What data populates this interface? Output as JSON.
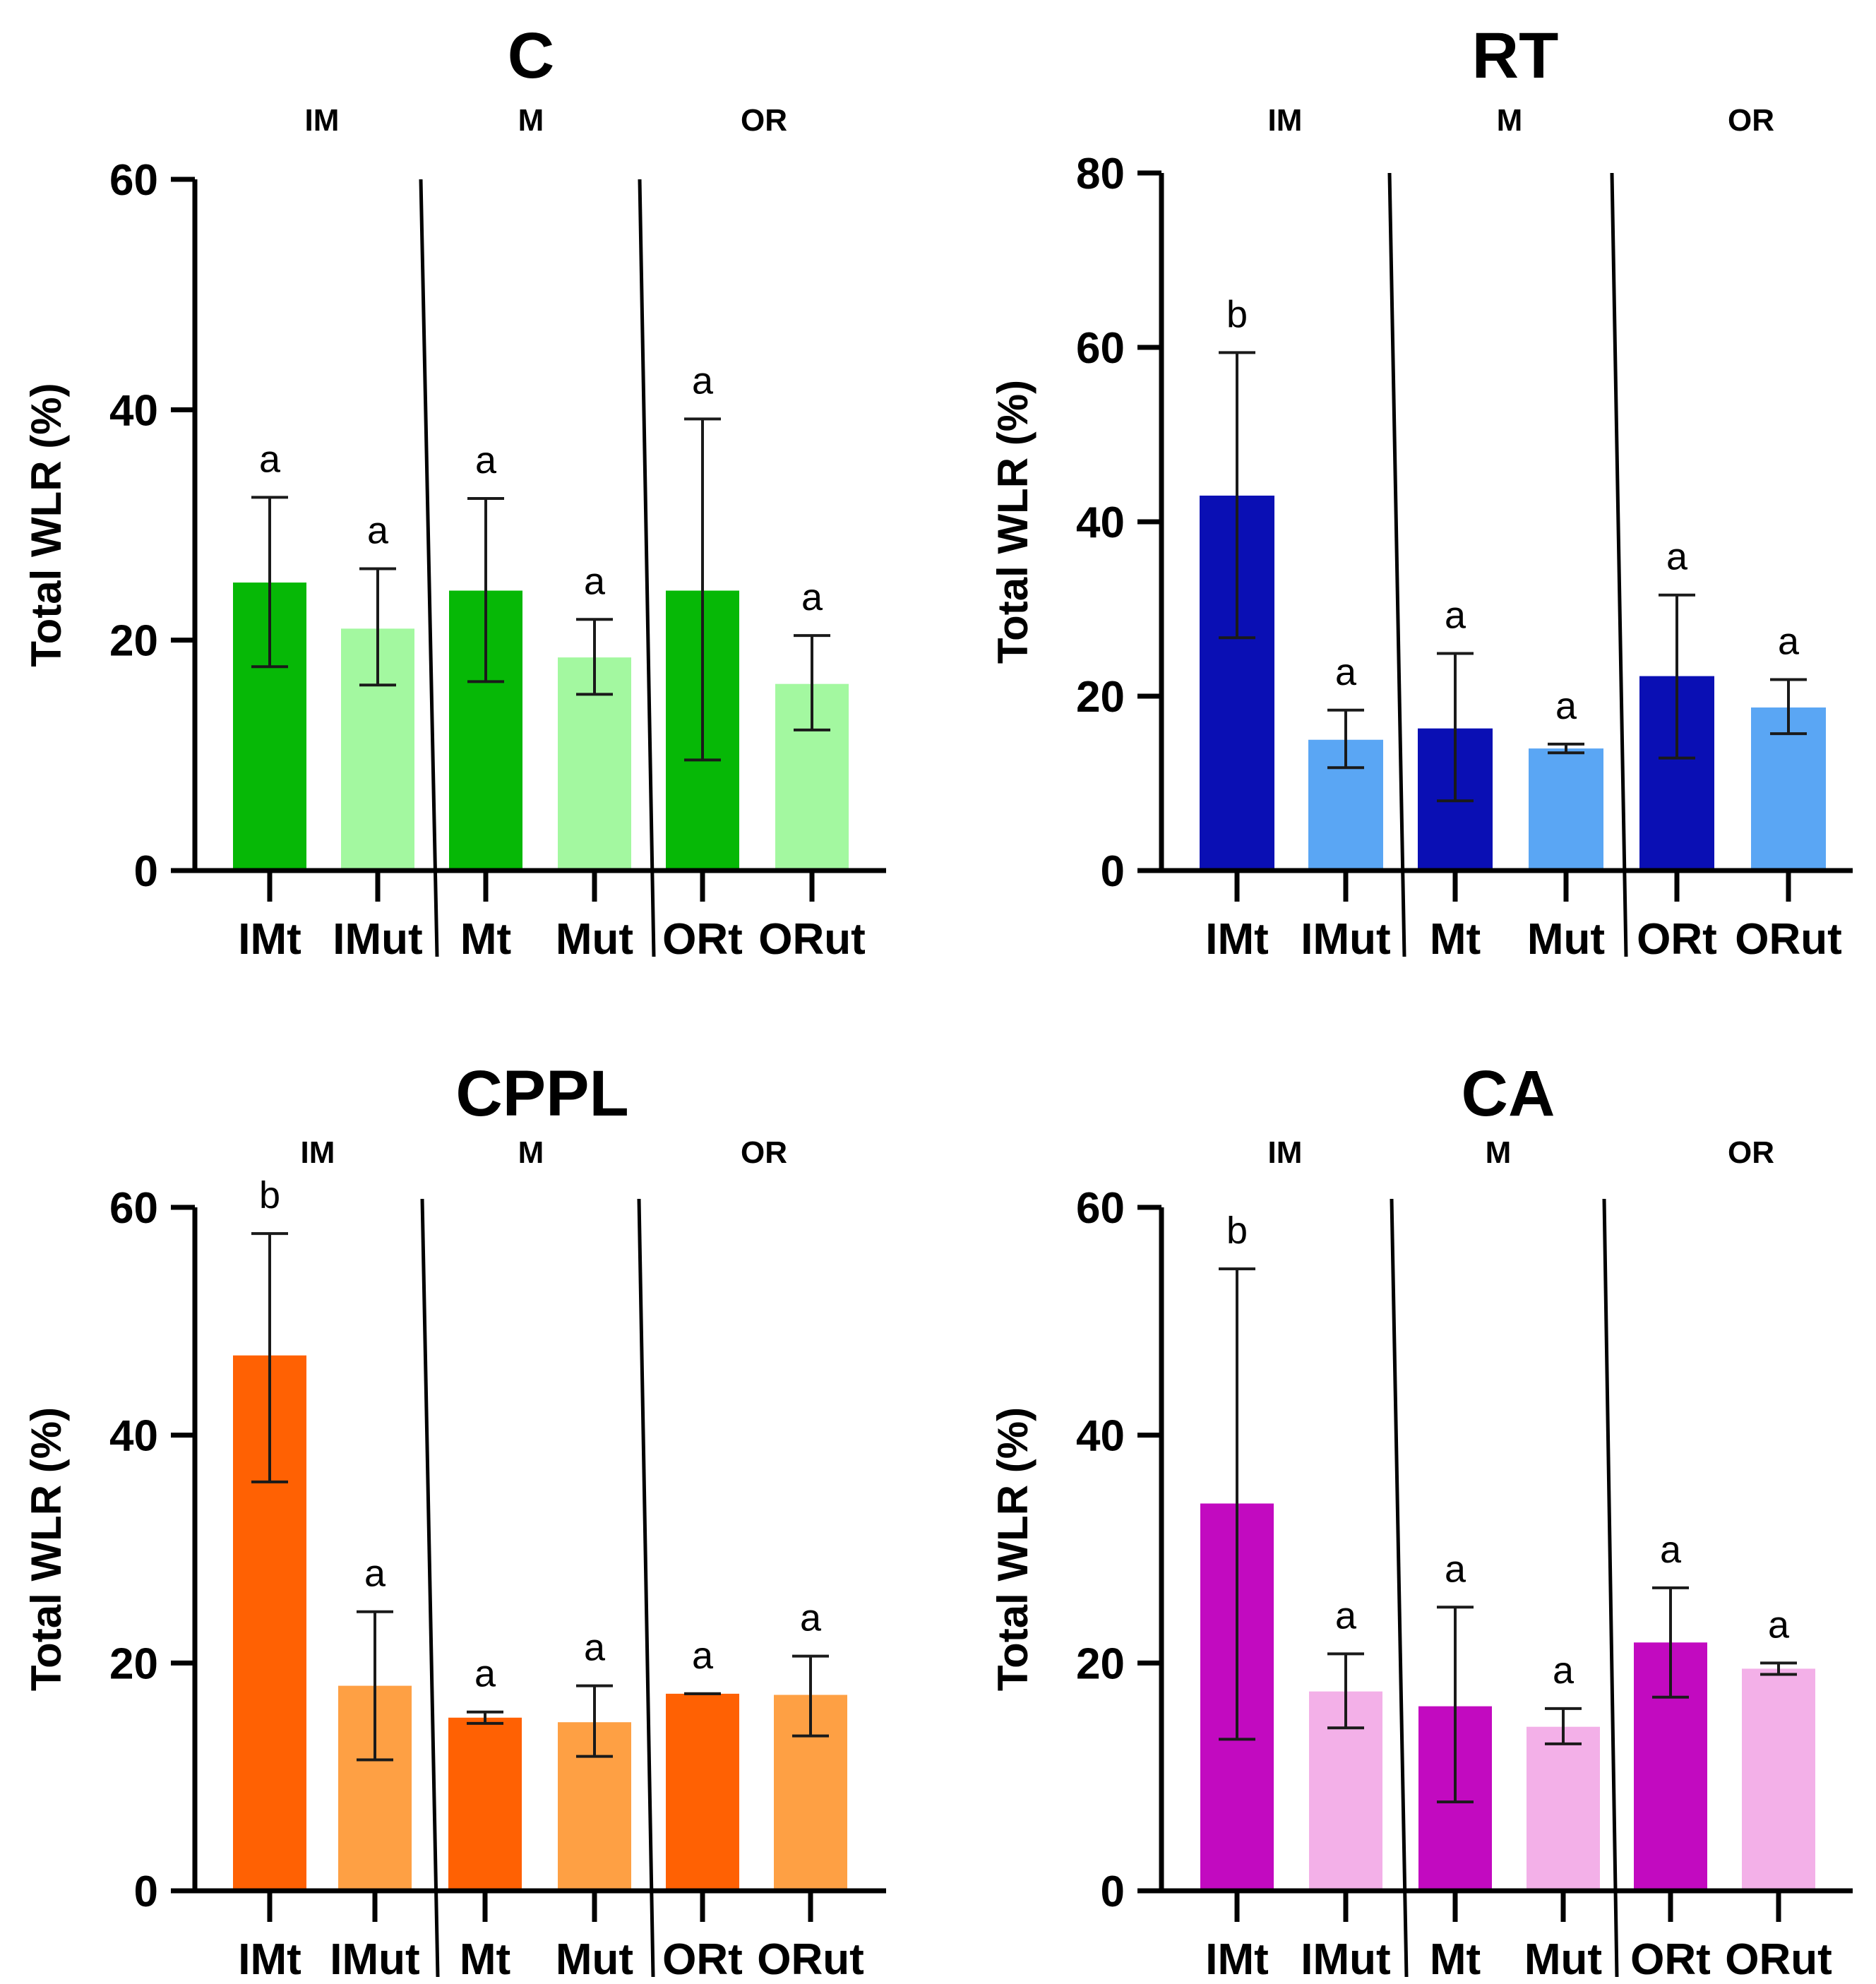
{
  "chart_data": [
    {
      "type": "bar",
      "title": "C",
      "ylabel": "Total WLR (%)",
      "xlabel": "",
      "ylim": [
        0,
        60
      ],
      "yticks": [
        0,
        20,
        40,
        60
      ],
      "categories": [
        "IMt",
        "IMut",
        "Mt",
        "Mut",
        "ORt",
        "ORut"
      ],
      "groups": [
        "IM",
        "M",
        "OR"
      ],
      "values": [
        25,
        21,
        24.3,
        18.5,
        24.3,
        16.2
      ],
      "error_low": [
        17.7,
        16.1,
        16.4,
        15.3,
        9.6,
        12.2
      ],
      "error_high": [
        32.4,
        26.2,
        32.3,
        21.8,
        39.2,
        20.4
      ],
      "significance": [
        "a",
        "a",
        "a",
        "a",
        "a",
        "a"
      ],
      "colors": [
        "#06b806",
        "#a3f8a0",
        "#06b806",
        "#a3f8a0",
        "#06b806",
        "#a3f8a0"
      ]
    },
    {
      "type": "bar",
      "title": "RT",
      "ylabel": "Total WLR (%)",
      "xlabel": "",
      "ylim": [
        0,
        80
      ],
      "yticks": [
        0,
        20,
        40,
        60,
        80
      ],
      "categories": [
        "IMt",
        "IMut",
        "Mt",
        "Mut",
        "ORt",
        "ORut"
      ],
      "groups": [
        "IM",
        "M",
        "OR"
      ],
      "values": [
        43,
        15,
        16.3,
        14,
        22.3,
        18.7
      ],
      "error_low": [
        26.7,
        11.8,
        8.0,
        13.5,
        12.9,
        15.7
      ],
      "error_high": [
        59.4,
        18.4,
        24.9,
        14.5,
        31.6,
        21.9
      ],
      "significance": [
        "b",
        "a",
        "a",
        "a",
        "a",
        "a"
      ],
      "colors": [
        "#0a0fb4",
        "#5aa6f4",
        "#0a0fb4",
        "#5aa6f4",
        "#0a0fb4",
        "#5aa6f4"
      ]
    },
    {
      "type": "bar",
      "title": "CPPL",
      "ylabel": "Total WLR (%)",
      "xlabel": "",
      "ylim": [
        0,
        60
      ],
      "yticks": [
        0,
        20,
        40,
        60
      ],
      "categories": [
        "IMt",
        "IMut",
        "Mt",
        "Mut",
        "ORt",
        "ORut"
      ],
      "groups": [
        "IM",
        "M",
        "OR"
      ],
      "values": [
        47,
        18,
        15.2,
        14.8,
        17.3,
        17.2
      ],
      "error_low": [
        35.9,
        11.5,
        14.7,
        11.8,
        17.3,
        13.6
      ],
      "error_high": [
        57.7,
        24.5,
        15.7,
        18.0,
        17.3,
        20.6
      ],
      "significance": [
        "b",
        "a",
        "a",
        "a",
        "a",
        "a"
      ],
      "colors": [
        "#ff6103",
        "#fea044",
        "#ff6103",
        "#fea044",
        "#ff6103",
        "#fea044"
      ]
    },
    {
      "type": "bar",
      "title": "CA",
      "ylabel": "Total WLR (%)",
      "xlabel": "",
      "ylim": [
        0,
        60
      ],
      "yticks": [
        0,
        20,
        40,
        60
      ],
      "categories": [
        "IMt",
        "IMut",
        "Mt",
        "Mut",
        "ORt",
        "ORut"
      ],
      "groups": [
        "IM",
        "M",
        "OR"
      ],
      "values": [
        34,
        17.5,
        16.2,
        14.4,
        21.8,
        19.5
      ],
      "error_low": [
        13.3,
        14.3,
        7.8,
        12.9,
        17.0,
        19.0
      ],
      "error_high": [
        54.6,
        20.8,
        24.9,
        16.0,
        26.6,
        20.0
      ],
      "significance": [
        "b",
        "a",
        "a",
        "a",
        "a",
        "a"
      ],
      "colors": [
        "#c20ac0",
        "#f3b0e8",
        "#c20ac0",
        "#f3b0e8",
        "#c20ac0",
        "#f3b0e8"
      ]
    }
  ]
}
